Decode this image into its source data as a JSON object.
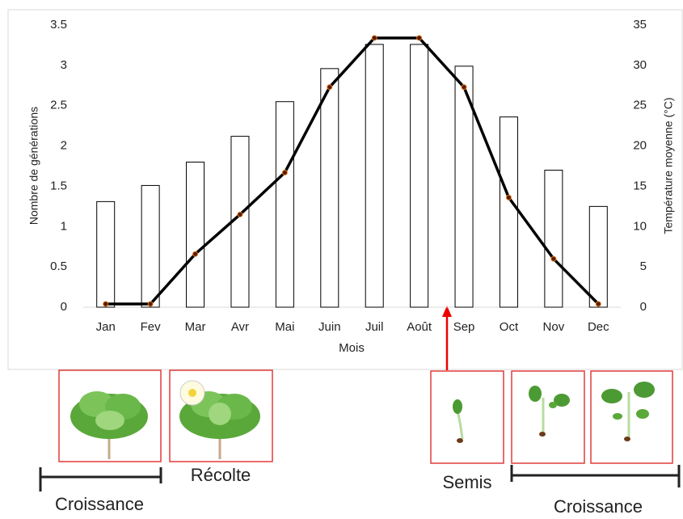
{
  "chart_data": {
    "type": "bar-line",
    "categories": [
      "Jan",
      "Fev",
      "Mar",
      "Avr",
      "Mai",
      "Juin",
      "Juil",
      "Août",
      "Sep",
      "Oct",
      "Nov",
      "Dec"
    ],
    "xlabel": "Mois",
    "ylabel": "Nombre de générations",
    "y2label": "Température moyenne (°C)",
    "series": [
      {
        "name": "Température moyenne (°C)",
        "type": "bar",
        "axis": "y2",
        "color": "#ffffff",
        "values": [
          13.1,
          15.1,
          18,
          21.2,
          25.5,
          29.6,
          32.6,
          32.6,
          29.9,
          23.6,
          17,
          12.5
        ]
      },
      {
        "name": "Nombre de générations",
        "type": "line",
        "color": "#000000",
        "values": [
          0.04,
          0.04,
          0.66,
          1.15,
          1.67,
          2.73,
          3.34,
          3.34,
          2.73,
          1.36,
          0.6,
          0.04
        ]
      }
    ],
    "ylim": [
      0,
      3.5
    ],
    "yticks": [
      0,
      0.5,
      1,
      1.5,
      2,
      2.5,
      3,
      3.5
    ],
    "y2lim": [
      0,
      35
    ],
    "y2ticks": [
      0,
      5,
      10,
      15,
      20,
      25,
      30,
      35
    ],
    "annotations": [
      "Croissance",
      "Récolte",
      "Semis",
      "Croissance"
    ]
  }
}
